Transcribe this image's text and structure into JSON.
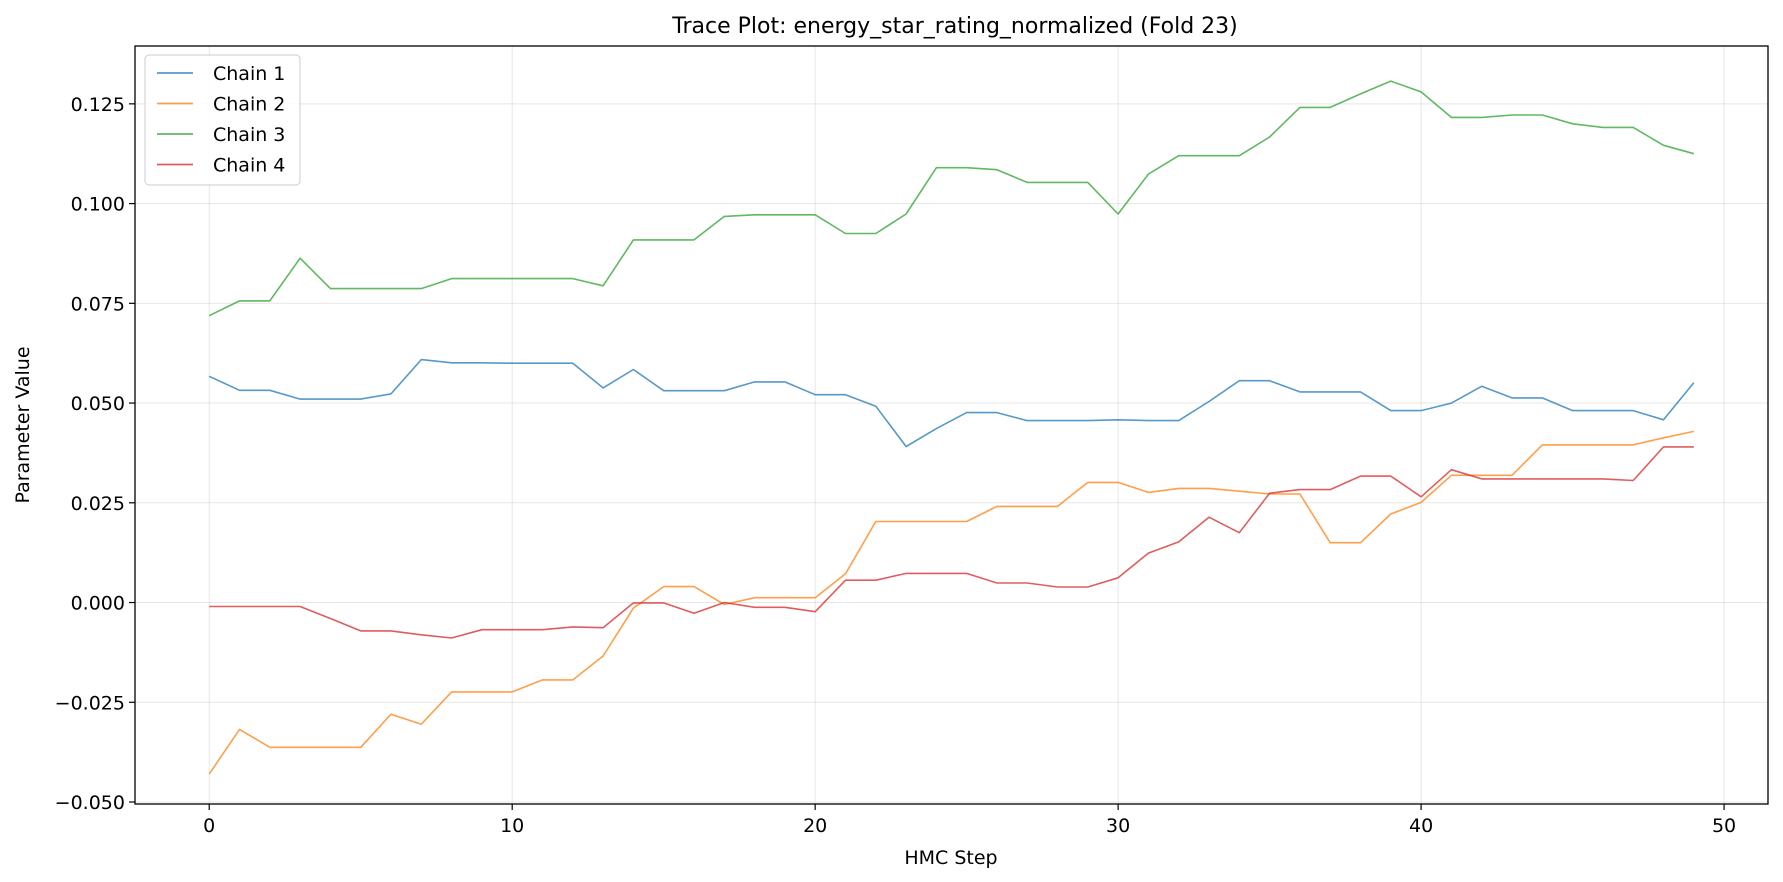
{
  "chart_data": {
    "type": "line",
    "title": "Trace Plot: energy_star_rating_normalized (Fold 23)",
    "xlabel": "HMC Step",
    "ylabel": "Parameter Value",
    "xlim": [
      -2.45,
      51.45
    ],
    "ylim": [
      -0.0505,
      0.1395
    ],
    "xticks": [
      0,
      10,
      20,
      30,
      40,
      50
    ],
    "xtick_labels": [
      "0",
      "10",
      "20",
      "30",
      "40",
      "50"
    ],
    "yticks": [
      -0.05,
      -0.025,
      0.0,
      0.025,
      0.05,
      0.075,
      0.1,
      0.125
    ],
    "ytick_labels": [
      "−0.050",
      "−0.025",
      "0.000",
      "0.025",
      "0.050",
      "0.075",
      "0.100",
      "0.125"
    ],
    "grid": true,
    "legend_position": "upper-left",
    "x": [
      0,
      1,
      2,
      3,
      4,
      5,
      6,
      7,
      8,
      9,
      10,
      11,
      12,
      13,
      14,
      15,
      16,
      17,
      18,
      19,
      20,
      21,
      22,
      23,
      24,
      25,
      26,
      27,
      28,
      29,
      30,
      31,
      32,
      33,
      34,
      35,
      36,
      37,
      38,
      39,
      40,
      41,
      42,
      43,
      44,
      45,
      46,
      47,
      48,
      49
    ],
    "series": [
      {
        "name": "Chain 1",
        "color": "#1f77b4",
        "values": [
          0.0567,
          0.0532,
          0.0532,
          0.051,
          0.051,
          0.051,
          0.0523,
          0.0609,
          0.0601,
          0.0601,
          0.06,
          0.06,
          0.06,
          0.0538,
          0.0584,
          0.0531,
          0.0531,
          0.0531,
          0.0553,
          0.0553,
          0.0521,
          0.0521,
          0.0492,
          0.0391,
          0.0436,
          0.0476,
          0.0476,
          0.0456,
          0.0456,
          0.0456,
          0.0458,
          0.0456,
          0.0456,
          0.0504,
          0.0556,
          0.0556,
          0.0528,
          0.0528,
          0.0528,
          0.0481,
          0.0481,
          0.05,
          0.0542,
          0.0513,
          0.0513,
          0.0481,
          0.0481,
          0.0481,
          0.0458,
          0.0551
        ]
      },
      {
        "name": "Chain 2",
        "color": "#ff7f0e",
        "values": [
          -0.043,
          -0.0318,
          -0.0363,
          -0.0363,
          -0.0363,
          -0.0363,
          -0.028,
          -0.0305,
          -0.0224,
          -0.0224,
          -0.0224,
          -0.0194,
          -0.0194,
          -0.0134,
          -0.0014,
          0.004,
          0.004,
          -0.0005,
          0.0012,
          0.0012,
          0.0012,
          0.0072,
          0.0203,
          0.0203,
          0.0203,
          0.0203,
          0.0241,
          0.0241,
          0.0241,
          0.0301,
          0.0301,
          0.0276,
          0.0286,
          0.0286,
          0.0279,
          0.0272,
          0.0272,
          0.015,
          0.015,
          0.0222,
          0.0251,
          0.0319,
          0.0319,
          0.0319,
          0.0395,
          0.0395,
          0.0395,
          0.0395,
          0.0413,
          0.0429
        ]
      },
      {
        "name": "Chain 3",
        "color": "#2ca02c",
        "values": [
          0.0719,
          0.0756,
          0.0756,
          0.0863,
          0.0787,
          0.0787,
          0.0787,
          0.0787,
          0.0812,
          0.0812,
          0.0812,
          0.0812,
          0.0812,
          0.0794,
          0.0909,
          0.0909,
          0.0909,
          0.0968,
          0.0972,
          0.0972,
          0.0972,
          0.0925,
          0.0925,
          0.0974,
          0.109,
          0.109,
          0.1085,
          0.1053,
          0.1053,
          0.1053,
          0.0974,
          0.1074,
          0.112,
          0.112,
          0.112,
          0.1167,
          0.1241,
          0.1241,
          0.1275,
          0.1307,
          0.128,
          0.1216,
          0.1216,
          0.1222,
          0.1222,
          0.12,
          0.1191,
          0.1191,
          0.1146,
          0.1125
        ]
      },
      {
        "name": "Chain 4",
        "color": "#d62728",
        "values": [
          -0.001,
          -0.001,
          -0.001,
          -0.001,
          -0.004,
          -0.0071,
          -0.0071,
          -0.0081,
          -0.0089,
          -0.0068,
          -0.0068,
          -0.0068,
          -0.0061,
          -0.0063,
          -0.0001,
          -0.0001,
          -0.0027,
          0.0,
          -0.0012,
          -0.0012,
          -0.0023,
          0.0056,
          0.0056,
          0.0073,
          0.0073,
          0.0073,
          0.0049,
          0.0049,
          0.0039,
          0.0039,
          0.0062,
          0.0124,
          0.0152,
          0.0214,
          0.0175,
          0.0274,
          0.0283,
          0.0283,
          0.0317,
          0.0317,
          0.0265,
          0.0333,
          0.031,
          0.031,
          0.031,
          0.031,
          0.031,
          0.0306,
          0.039,
          0.039
        ]
      }
    ]
  }
}
